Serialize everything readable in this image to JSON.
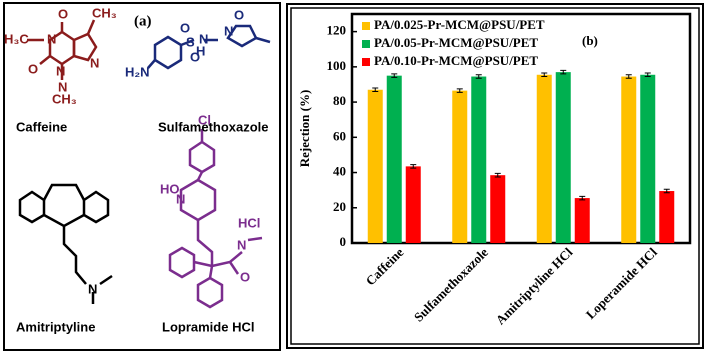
{
  "panel_a": {
    "label": "(a)",
    "structures": [
      {
        "name": "Caffeine",
        "color": "#8b1c1c",
        "atoms": [
          "H₃C",
          "N",
          "O",
          "CH₃",
          "N",
          "O",
          "N",
          "N",
          "CH₃"
        ]
      },
      {
        "name": "Sulfamethoxazole",
        "color": "#1a2a7a",
        "atoms": [
          "H₂N",
          "S",
          "O",
          "O",
          "N",
          "H",
          "N",
          "O"
        ]
      },
      {
        "name": "Amitriptyline",
        "color": "#000000",
        "atoms": [
          "N"
        ]
      },
      {
        "name": "Lopramide HCl",
        "color": "#7b2d8e",
        "atoms": [
          "Cl",
          "HO",
          "N",
          "N",
          "O",
          "HCl"
        ]
      }
    ]
  },
  "chart_data": {
    "type": "bar",
    "annotation": "(b)",
    "y_label": "Rejection (%)",
    "categories": [
      "Caffeine",
      "Sulfamethoxazole",
      "Amitriptyline HCl",
      "Loperamide HCl"
    ],
    "series": [
      {
        "name": "PA/0.025-Pr-MCM@PSU/PET",
        "color": "#ffc000",
        "values": [
          87,
          86.5,
          95.5,
          94.5
        ],
        "errors": [
          1,
          1,
          1,
          1
        ]
      },
      {
        "name": "PA/0.05-Pr-MCM@PSU/PET",
        "color": "#00b050",
        "values": [
          95,
          94.5,
          97,
          95.5
        ],
        "errors": [
          1,
          1,
          1,
          1
        ]
      },
      {
        "name": "PA/0.10-Pr-MCM@PSU/PET",
        "color": "#ff0000",
        "values": [
          43.5,
          38.5,
          25.5,
          29.5
        ],
        "errors": [
          1,
          1,
          1,
          1
        ]
      }
    ],
    "ylim": [
      0,
      130
    ],
    "yticks": [
      0,
      20,
      40,
      60,
      80,
      100,
      120
    ],
    "legend": "top-left",
    "grid": false
  }
}
